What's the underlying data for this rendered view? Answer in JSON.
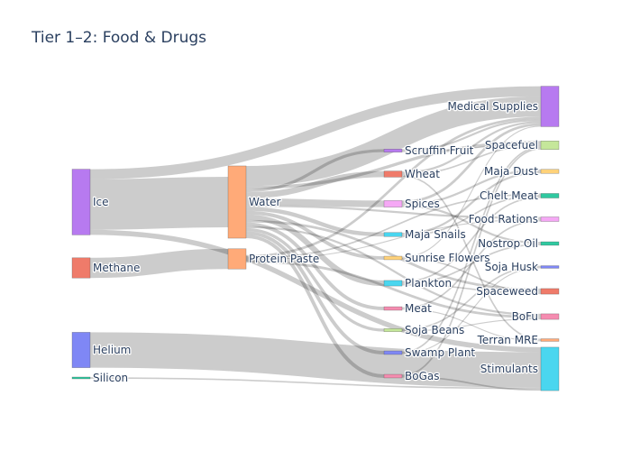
{
  "chart_data": {
    "type": "sankey",
    "title": "Tier 1–2: Food & Drugs",
    "nodes": [
      {
        "id": "ice",
        "label": "Ice",
        "color": "#b77af0"
      },
      {
        "id": "methane",
        "label": "Methane",
        "color": "#ef7b6a"
      },
      {
        "id": "helium",
        "label": "Helium",
        "color": "#7f87f5"
      },
      {
        "id": "silicon",
        "label": "Silicon",
        "color": "#2fc9a0"
      },
      {
        "id": "water",
        "label": "Water",
        "color": "#ffaa78"
      },
      {
        "id": "protein_paste",
        "label": "Protein Paste",
        "color": "#ffaa78"
      },
      {
        "id": "scruffin_fruit",
        "label": "Scruffin Fruit",
        "color": "#b77af0"
      },
      {
        "id": "wheat",
        "label": "Wheat",
        "color": "#ef7b6a"
      },
      {
        "id": "spices",
        "label": "Spices",
        "color": "#f5a8f5"
      },
      {
        "id": "maja_snails",
        "label": "Maja Snails",
        "color": "#4ad6ef"
      },
      {
        "id": "sunrise_flowers",
        "label": "Sunrise Flowers",
        "color": "#ffd27a"
      },
      {
        "id": "plankton",
        "label": "Plankton",
        "color": "#4ad6ef"
      },
      {
        "id": "meat",
        "label": "Meat",
        "color": "#f58cb0"
      },
      {
        "id": "soja_beans",
        "label": "Soja Beans",
        "color": "#c5e79a"
      },
      {
        "id": "swamp_plant",
        "label": "Swamp Plant",
        "color": "#7f87f5"
      },
      {
        "id": "bogas",
        "label": "BoGas",
        "color": "#f58cb0"
      },
      {
        "id": "medical_supplies",
        "label": "Medical Supplies",
        "color": "#b77af0"
      },
      {
        "id": "spacefuel",
        "label": "Spacefuel",
        "color": "#c5e79a"
      },
      {
        "id": "maja_dust",
        "label": "Maja Dust",
        "color": "#ffd27a"
      },
      {
        "id": "chelt_meat",
        "label": "Chelt Meat",
        "color": "#2fc9a0"
      },
      {
        "id": "food_rations",
        "label": "Food Rations",
        "color": "#f5a8f5"
      },
      {
        "id": "nostrop_oil",
        "label": "Nostrop Oil",
        "color": "#2fc9a0"
      },
      {
        "id": "soja_husk",
        "label": "Soja Husk",
        "color": "#7f87f5"
      },
      {
        "id": "spaceweed",
        "label": "Spaceweed",
        "color": "#ef7b6a"
      },
      {
        "id": "bofu",
        "label": "BoFu",
        "color": "#f58cb0"
      },
      {
        "id": "terran_mre",
        "label": "Terran MRE",
        "color": "#ffaa78"
      },
      {
        "id": "stimulants",
        "label": "Stimulants",
        "color": "#4ad6ef"
      }
    ],
    "links": [
      {
        "source": "ice",
        "target": "water",
        "value": 10
      },
      {
        "source": "ice",
        "target": "medical_supplies",
        "value": 2
      },
      {
        "source": "ice",
        "target": "stimulants",
        "value": 1
      },
      {
        "source": "methane",
        "target": "protein_paste",
        "value": 4
      },
      {
        "source": "helium",
        "target": "stimulants",
        "value": 7
      },
      {
        "source": "silicon",
        "target": "stimulants",
        "value": 0.3
      },
      {
        "source": "water",
        "target": "medical_supplies",
        "value": 4
      },
      {
        "source": "water",
        "target": "scruffin_fruit",
        "value": 0.6
      },
      {
        "source": "water",
        "target": "wheat",
        "value": 1.2
      },
      {
        "source": "water",
        "target": "spices",
        "value": 1.3
      },
      {
        "source": "water",
        "target": "maja_snails",
        "value": 0.8
      },
      {
        "source": "water",
        "target": "sunrise_flowers",
        "value": 0.7
      },
      {
        "source": "water",
        "target": "plankton",
        "value": 1.1
      },
      {
        "source": "water",
        "target": "meat",
        "value": 0.7
      },
      {
        "source": "water",
        "target": "soja_beans",
        "value": 0.6
      },
      {
        "source": "water",
        "target": "swamp_plant",
        "value": 0.7
      },
      {
        "source": "water",
        "target": "bogas",
        "value": 0.7
      },
      {
        "source": "water",
        "target": "spacefuel",
        "value": 0.6
      },
      {
        "source": "water",
        "target": "spaceweed",
        "value": 0.5
      },
      {
        "source": "water",
        "target": "food_rations",
        "value": 0.4
      },
      {
        "source": "water",
        "target": "bofu",
        "value": 0.4
      },
      {
        "source": "protein_paste",
        "target": "medical_supplies",
        "value": 0.5
      },
      {
        "source": "protein_paste",
        "target": "food_rations",
        "value": 0.2
      },
      {
        "source": "protein_paste",
        "target": "bofu",
        "value": 0.5
      },
      {
        "source": "protein_paste",
        "target": "chelt_meat",
        "value": 0.3
      },
      {
        "source": "scruffin_fruit",
        "target": "medical_supplies",
        "value": 0.4
      },
      {
        "source": "scruffin_fruit",
        "target": "spacefuel",
        "value": 0.2
      },
      {
        "source": "wheat",
        "target": "medical_supplies",
        "value": 0.4
      },
      {
        "source": "wheat",
        "target": "spacefuel",
        "value": 0.3
      },
      {
        "source": "wheat",
        "target": "terran_mre",
        "value": 0.3
      },
      {
        "source": "spices",
        "target": "medical_supplies",
        "value": 0.5
      },
      {
        "source": "spices",
        "target": "maja_dust",
        "value": 0.4
      },
      {
        "source": "spices",
        "target": "nostrop_oil",
        "value": 0.4
      },
      {
        "source": "maja_snails",
        "target": "maja_dust",
        "value": 0.4
      },
      {
        "source": "maja_snails",
        "target": "chelt_meat",
        "value": 0.3
      },
      {
        "source": "sunrise_flowers",
        "target": "medical_supplies",
        "value": 0.2
      },
      {
        "source": "sunrise_flowers",
        "target": "spaceweed",
        "value": 0.3
      },
      {
        "source": "plankton",
        "target": "chelt_meat",
        "value": 0.3
      },
      {
        "source": "plankton",
        "target": "nostrop_oil",
        "value": 0.3
      },
      {
        "source": "plankton",
        "target": "spaceweed",
        "value": 0.3
      },
      {
        "source": "meat",
        "target": "food_rations",
        "value": 0.3
      },
      {
        "source": "meat",
        "target": "terran_mre",
        "value": 0.2
      },
      {
        "source": "soja_beans",
        "target": "soja_husk",
        "value": 0.3
      },
      {
        "source": "soja_beans",
        "target": "bofu",
        "value": 0.2
      },
      {
        "source": "swamp_plant",
        "target": "spacefuel",
        "value": 0.3
      },
      {
        "source": "swamp_plant",
        "target": "soja_husk",
        "value": 0.2
      },
      {
        "source": "bogas",
        "target": "spacefuel",
        "value": 0.3
      },
      {
        "source": "bogas",
        "target": "stimulants",
        "value": 0.3
      }
    ]
  }
}
